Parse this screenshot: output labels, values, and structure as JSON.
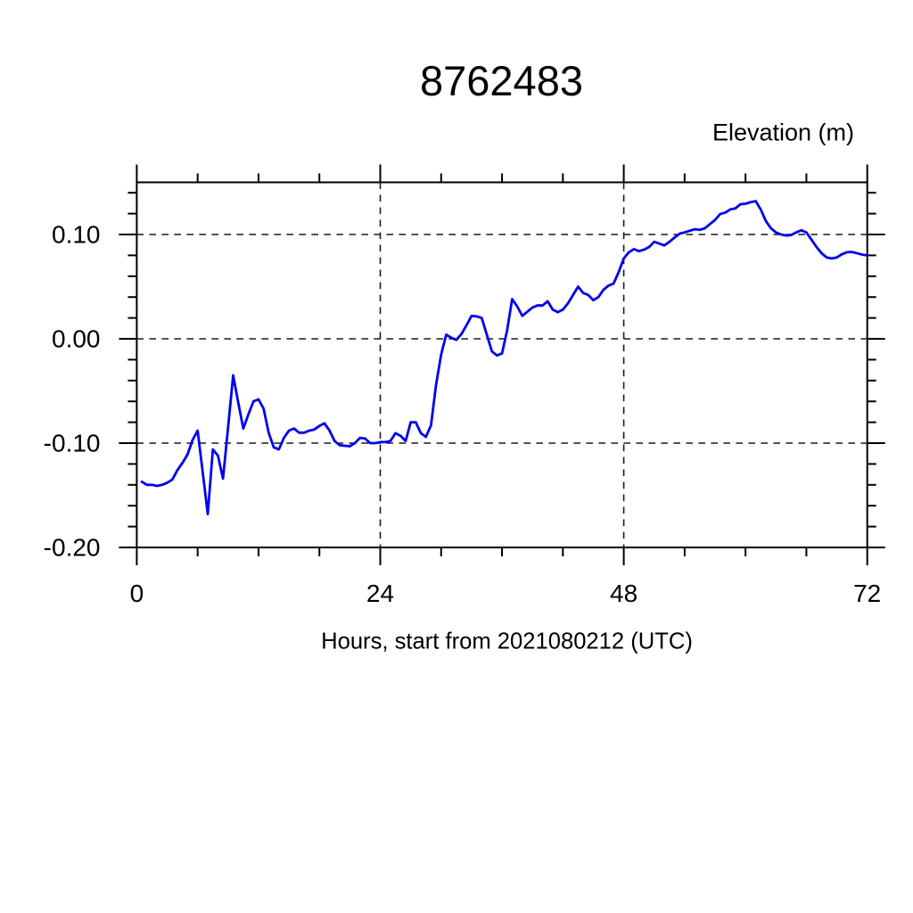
{
  "page": {
    "background": "#ffffff"
  },
  "chart_data": {
    "type": "line",
    "title": "8762483",
    "ylabel": "Elevation (m)",
    "xlabel": "Hours, start from 2021080212 (UTC)",
    "xlim": [
      0,
      72
    ],
    "ylim": [
      -0.2,
      0.15
    ],
    "x_ticks_major": [
      0,
      24,
      48,
      72
    ],
    "x_tick_labels": [
      "0",
      "24",
      "48",
      "72"
    ],
    "x_minor_step": 6,
    "y_ticks_major": [
      -0.2,
      -0.1,
      0.0,
      0.1
    ],
    "y_tick_labels": [
      "-0.20",
      "-0.10",
      "0.00",
      "0.10"
    ],
    "y_minor_step": 0.02,
    "grid": {
      "style": "dashed",
      "x_lines": [
        24,
        48
      ],
      "y_lines": [
        -0.2,
        -0.1,
        0.0,
        0.1
      ]
    },
    "legend": "none",
    "line_color": "#0000EE",
    "axis_color": "#000000",
    "grid_color": "#1a1a1a",
    "series": [
      {
        "name": "elevation",
        "x": [
          0.5,
          1,
          1.5,
          2,
          2.5,
          3,
          3.5,
          4,
          4.5,
          5,
          5.5,
          6,
          6.5,
          7,
          7.5,
          8,
          8.5,
          9,
          9.5,
          10,
          10.5,
          11,
          11.5,
          12,
          12.5,
          13,
          13.5,
          14,
          14.5,
          15,
          15.5,
          16,
          16.5,
          17,
          17.5,
          18,
          18.5,
          19,
          19.5,
          20,
          20.5,
          21,
          21.5,
          22,
          22.5,
          23,
          23.5,
          24,
          24.5,
          25,
          25.5,
          26,
          26.5,
          27,
          27.5,
          28,
          28.5,
          29,
          29.5,
          30,
          30.5,
          31,
          31.5,
          32,
          32.5,
          33,
          33.5,
          34,
          34.5,
          35,
          35.5,
          36,
          36.5,
          37,
          37.5,
          38,
          38.5,
          39,
          39.5,
          40,
          40.5,
          41,
          41.5,
          42,
          42.5,
          43,
          43.5,
          44,
          44.5,
          45,
          45.5,
          46,
          46.5,
          47,
          47.5,
          48,
          48.5,
          49,
          49.5,
          50,
          50.5,
          51,
          51.5,
          52,
          52.5,
          53,
          53.5,
          54,
          54.5,
          55,
          55.5,
          56,
          56.5,
          57,
          57.5,
          58,
          58.5,
          59,
          59.5,
          60,
          60.5,
          61,
          61.5,
          62,
          62.5,
          63,
          63.5,
          64,
          64.5,
          65,
          65.5,
          66,
          66.5,
          67,
          67.5,
          68,
          68.5,
          69,
          69.5,
          70,
          70.5,
          71,
          71.5,
          72
        ],
        "values": [
          -0.137,
          -0.14,
          -0.14,
          -0.141,
          -0.14,
          -0.138,
          -0.135,
          -0.126,
          -0.119,
          -0.111,
          -0.097,
          -0.088,
          -0.128,
          -0.168,
          -0.106,
          -0.112,
          -0.134,
          -0.085,
          -0.035,
          -0.061,
          -0.086,
          -0.0725,
          -0.06,
          -0.058,
          -0.067,
          -0.09,
          -0.104,
          -0.106,
          -0.095,
          -0.088,
          -0.086,
          -0.09,
          -0.09,
          -0.088,
          -0.087,
          -0.0835,
          -0.081,
          -0.088,
          -0.098,
          -0.102,
          -0.1025,
          -0.103,
          -0.1,
          -0.095,
          -0.0955,
          -0.1,
          -0.1,
          -0.099,
          -0.099,
          -0.098,
          -0.0905,
          -0.093,
          -0.098,
          -0.08,
          -0.08,
          -0.0905,
          -0.094,
          -0.083,
          -0.044,
          -0.015,
          0.004,
          0.001,
          -0.001,
          0.0045,
          0.013,
          0.022,
          0.0215,
          0.02,
          0.004,
          -0.012,
          -0.016,
          -0.014,
          0.008,
          0.038,
          0.031,
          0.022,
          0.026,
          0.03,
          0.032,
          0.032,
          0.036,
          0.028,
          0.0255,
          0.028,
          0.034,
          0.042,
          0.05,
          0.044,
          0.042,
          0.037,
          0.04,
          0.047,
          0.051,
          0.053,
          0.064,
          0.077,
          0.083,
          0.086,
          0.084,
          0.0855,
          0.088,
          0.093,
          0.0913,
          0.0895,
          0.093,
          0.097,
          0.1008,
          0.102,
          0.1036,
          0.105,
          0.1045,
          0.106,
          0.11,
          0.114,
          0.1196,
          0.121,
          0.124,
          0.125,
          0.129,
          0.1295,
          0.131,
          0.132,
          0.124,
          0.113,
          0.106,
          0.102,
          0.1,
          0.099,
          0.0995,
          0.102,
          0.104,
          0.102,
          0.095,
          0.088,
          0.082,
          0.078,
          0.077,
          0.078,
          0.081,
          0.083,
          0.0832,
          0.082,
          0.0807,
          0.08
        ]
      }
    ]
  }
}
